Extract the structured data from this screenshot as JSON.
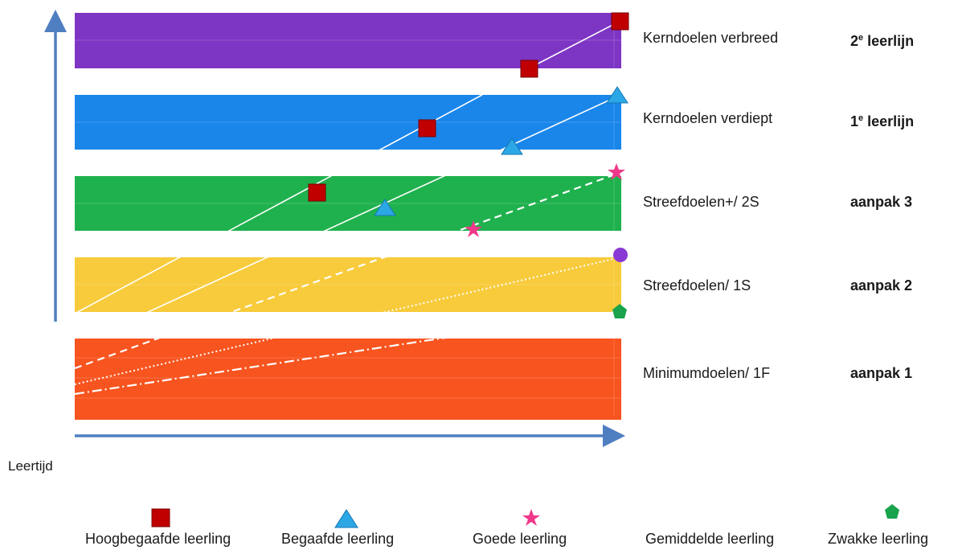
{
  "bands": [
    {
      "label": "Kerndoelen verbreed",
      "track_main": "2",
      "track_sup": "e",
      "track_rest": " leerlijn",
      "color": "#7d35c4"
    },
    {
      "label": "Kerndoelen verdiept",
      "track_main": "1",
      "track_sup": "e",
      "track_rest": " leerlijn",
      "color": "#1a86ea"
    },
    {
      "label": "Streefdoelen+/ 2S",
      "track_main": "aanpak 3",
      "track_sup": "",
      "track_rest": "",
      "color": "#1fb14d"
    },
    {
      "label": "Streefdoelen/ 1S",
      "track_main": "aanpak 2",
      "track_sup": "",
      "track_rest": "",
      "color": "#f8cb3c"
    },
    {
      "label": "Minimumdoelen/ 1F",
      "track_main": "aanpak 1",
      "track_sup": "",
      "track_rest": "",
      "color": "#f7541f"
    }
  ],
  "x_axis_label": "Leertijd",
  "legend": [
    {
      "label": "Hoogbegaafde leerling",
      "icon": "red-square-icon",
      "color": "#c00000"
    },
    {
      "label": "Begaafde leerling",
      "icon": "blue-triangle-icon",
      "color": "#2ca7e6"
    },
    {
      "label": "Goede leerling",
      "icon": "pink-star-icon",
      "color": "#f0388a"
    },
    {
      "label": "Gemiddelde leerling",
      "icon": "purple-circle-icon",
      "color": "#8a3ad4"
    },
    {
      "label": "Zwakke leerling",
      "icon": "green-pentagon-icon",
      "color": "#18a34c"
    }
  ],
  "axis_color": "#4f7fc0"
}
